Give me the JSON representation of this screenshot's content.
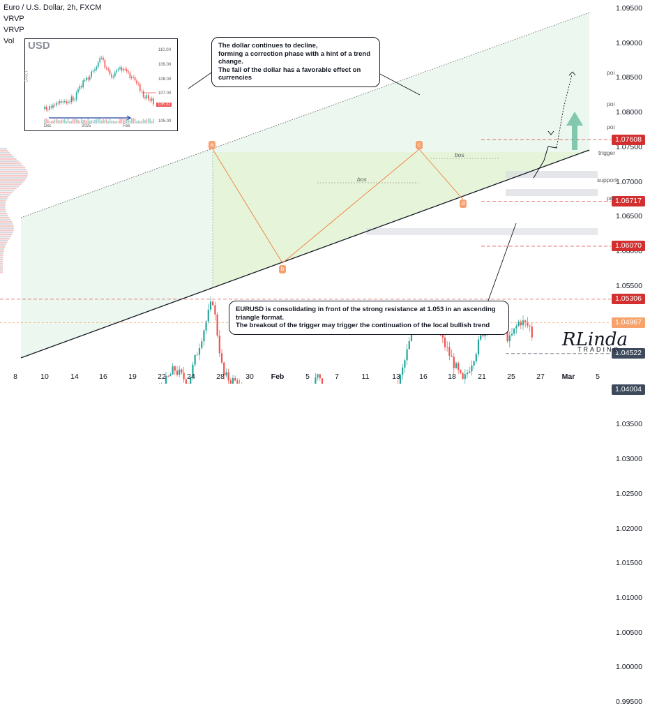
{
  "header": {
    "symbol": "Euro / U.S. Dollar, 2h, FXCM",
    "ind1": "VRVP",
    "ind2": "VRVP",
    "ind3": "Vol"
  },
  "colors": {
    "bull": "#26a69a",
    "bear": "#ef5350",
    "triangle_fill": "#e6f4d6",
    "channel_fill": "#e8f6ec",
    "level_red": "#d32f2f",
    "level_orange": "#f7a26b",
    "level_dark": "#3c4a5c",
    "arrow_green": "#5fb89a"
  },
  "price_axis": {
    "ticks": [
      "1.09500",
      "1.09000",
      "1.08500",
      "1.08000",
      "1.07500",
      "1.07000",
      "1.06500",
      "1.06000",
      "1.05500",
      "1.05000",
      "1.04500",
      "1.04000",
      "1.03500",
      "1.03000",
      "1.02500",
      "1.02000",
      "1.01500",
      "1.01000",
      "1.00500",
      "1.00000",
      "0.99500"
    ],
    "labels": [
      {
        "text": "1.07608",
        "value": 1.07608,
        "color": "#d32f2f"
      },
      {
        "text": "1.06717",
        "value": 1.06717,
        "color": "#d32f2f"
      },
      {
        "text": "1.06070",
        "value": 1.0607,
        "color": "#d32f2f"
      },
      {
        "text": "1.05306",
        "value": 1.05306,
        "color": "#d32f2f"
      },
      {
        "text": "1.04967",
        "value": 1.04967,
        "color": "#f7a26b"
      },
      {
        "text": "1.04522",
        "value": 1.04522,
        "color": "#3c4a5c"
      },
      {
        "text": "1.04004",
        "value": 1.04004,
        "color": "#3c4a5c"
      }
    ]
  },
  "time_axis": [
    "8",
    "10",
    "14",
    "16",
    "19",
    "22",
    "24",
    "28",
    "30",
    "Feb",
    "5",
    "7",
    "11",
    "13",
    "16",
    "18",
    "21",
    "25",
    "27",
    "Mar",
    "5"
  ],
  "levels": [
    {
      "tag": "poi",
      "value": 1.07608
    },
    {
      "tag": "poi",
      "value": 1.06717
    },
    {
      "tag": "poi",
      "value": 1.0607
    },
    {
      "tag": "trigger",
      "value": 1.05306
    },
    {
      "tag": "support",
      "value": 1.04522
    },
    {
      "tag": "poi",
      "value": 1.04004
    }
  ],
  "points": [
    "a",
    "b",
    "c",
    "d"
  ],
  "bos": [
    "bos",
    "bos"
  ],
  "notes": {
    "top": "The dollar continues to decline,\nforming a correction phase with a hint of a trend change.\nThe fall of the dollar has a favorable effect on currencies",
    "bottom": "EURUSD is consolidating in front of the strong resistance at 1.053 in an ascending triangle format.\nThe breakout of the trigger may trigger the continuation of the local bullish trend"
  },
  "inset": {
    "title": "USD",
    "side": "DAILY",
    "y_ticks": [
      "110.00",
      "109.00",
      "108.00",
      "107.00",
      "105.00"
    ],
    "price_tag": "106.32",
    "x_ticks": [
      "Dec",
      "2025",
      "Feb"
    ]
  },
  "logo": {
    "text": "RLinda",
    "sub": "TRADING"
  },
  "chart_data": {
    "type": "candlestick",
    "title": "Euro / U.S. Dollar, 2h, FXCM",
    "ylim": [
      0.993,
      1.097
    ],
    "y_ticks": [
      0.995,
      1.0,
      1.005,
      1.01,
      1.015,
      1.02,
      1.025,
      1.03,
      1.035,
      1.04,
      1.045,
      1.05,
      1.055,
      1.06,
      1.065,
      1.07,
      1.075,
      1.08,
      1.085,
      1.09,
      1.095
    ],
    "x_ticks": [
      "8",
      "10",
      "14",
      "16",
      "19",
      "22",
      "24",
      "28",
      "30",
      "Feb",
      "5",
      "7",
      "11",
      "13",
      "16",
      "18",
      "21",
      "25",
      "27",
      "Mar",
      "5"
    ],
    "series": [
      {
        "name": "approx close path",
        "x": [
          "8",
          "10",
          "14",
          "16",
          "19",
          "22",
          "24",
          "28",
          "30",
          "Feb",
          "5",
          "7",
          "11",
          "13",
          "16",
          "18",
          "21",
          "25"
        ],
        "values": [
          1.0325,
          1.028,
          1.02,
          1.028,
          1.031,
          1.04,
          1.042,
          1.053,
          1.042,
          1.0205,
          1.035,
          1.04,
          1.03,
          1.042,
          1.053,
          1.046,
          1.042,
          1.051
        ]
      }
    ],
    "levels": [
      1.07608,
      1.06717,
      1.0607,
      1.05306,
      1.04967,
      1.04522,
      1.04004
    ]
  }
}
